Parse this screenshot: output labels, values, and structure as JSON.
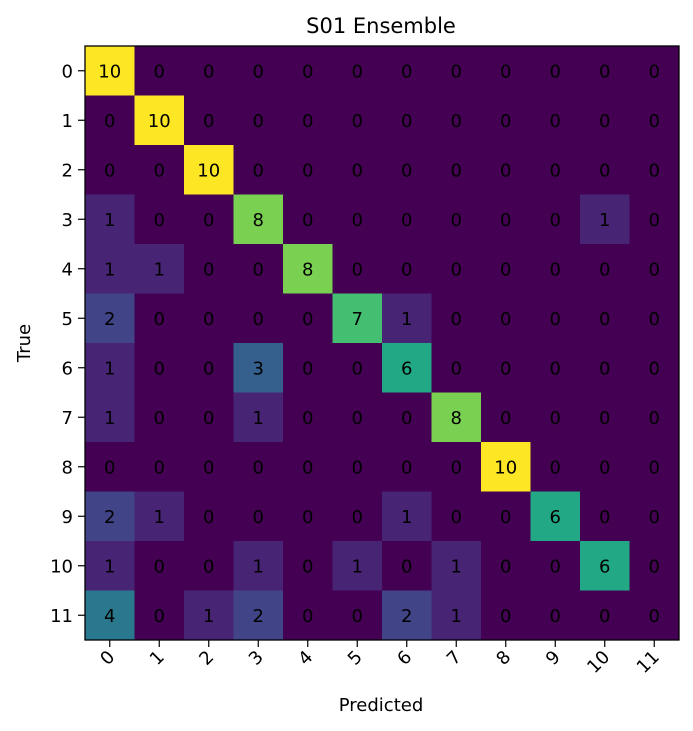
{
  "chart_data": {
    "type": "heatmap",
    "title": "S01 Ensemble",
    "xlabel": "Predicted",
    "ylabel": "True",
    "x_categories": [
      "0",
      "1",
      "2",
      "3",
      "4",
      "5",
      "6",
      "7",
      "8",
      "9",
      "10",
      "11"
    ],
    "y_categories": [
      "0",
      "1",
      "2",
      "3",
      "4",
      "5",
      "6",
      "7",
      "8",
      "9",
      "10",
      "11"
    ],
    "colormap": "viridis",
    "value_range": [
      0,
      10
    ],
    "values": [
      [
        10,
        0,
        0,
        0,
        0,
        0,
        0,
        0,
        0,
        0,
        0,
        0
      ],
      [
        0,
        10,
        0,
        0,
        0,
        0,
        0,
        0,
        0,
        0,
        0,
        0
      ],
      [
        0,
        0,
        10,
        0,
        0,
        0,
        0,
        0,
        0,
        0,
        0,
        0
      ],
      [
        1,
        0,
        0,
        8,
        0,
        0,
        0,
        0,
        0,
        0,
        1,
        0
      ],
      [
        1,
        1,
        0,
        0,
        8,
        0,
        0,
        0,
        0,
        0,
        0,
        0
      ],
      [
        2,
        0,
        0,
        0,
        0,
        7,
        1,
        0,
        0,
        0,
        0,
        0
      ],
      [
        1,
        0,
        0,
        3,
        0,
        0,
        6,
        0,
        0,
        0,
        0,
        0
      ],
      [
        1,
        0,
        0,
        1,
        0,
        0,
        0,
        8,
        0,
        0,
        0,
        0
      ],
      [
        0,
        0,
        0,
        0,
        0,
        0,
        0,
        0,
        10,
        0,
        0,
        0
      ],
      [
        2,
        1,
        0,
        0,
        0,
        0,
        1,
        0,
        0,
        6,
        0,
        0
      ],
      [
        1,
        0,
        0,
        1,
        0,
        1,
        0,
        1,
        0,
        0,
        6,
        0
      ],
      [
        4,
        0,
        1,
        2,
        0,
        0,
        2,
        1,
        0,
        0,
        0,
        0
      ]
    ],
    "grid": false,
    "legend": "none"
  }
}
